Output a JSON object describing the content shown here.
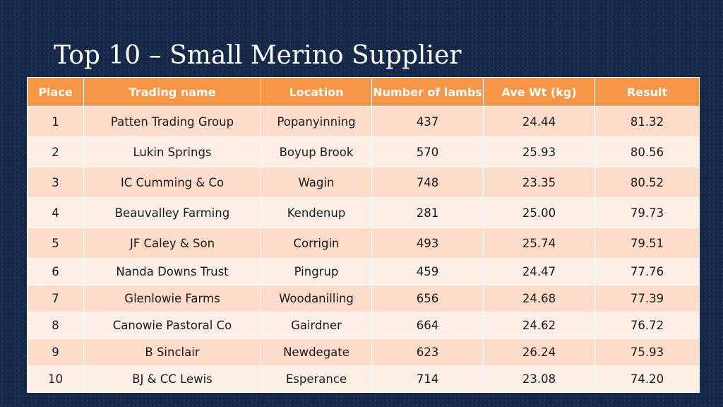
{
  "slide": {
    "title": "Top 10 – Small Merino Supplier"
  },
  "table": {
    "headers": [
      "Place",
      "Trading name",
      "Location",
      "Number of lambs",
      "Ave Wt (kg)",
      "Result"
    ],
    "rows": [
      [
        "1",
        "Patten Trading Group",
        "Popanyinning",
        "437",
        "24.44",
        "81.32"
      ],
      [
        "2",
        "Lukin Springs",
        "Boyup Brook",
        "570",
        "25.93",
        "80.56"
      ],
      [
        "3",
        "IC Cumming & Co",
        "Wagin",
        "748",
        "23.35",
        "80.52"
      ],
      [
        "4",
        "Beauvalley Farming",
        "Kendenup",
        "281",
        "25.00",
        "79.73"
      ],
      [
        "5",
        "JF Caley & Son",
        "Corrigin",
        "493",
        "25.74",
        "79.51"
      ],
      [
        "6",
        "Nanda Downs Trust",
        "Pingrup",
        "459",
        "24.47",
        "77.76"
      ],
      [
        "7",
        "Glenlowie Farms",
        "Woodanilling",
        "656",
        "24.68",
        "77.39"
      ],
      [
        "8",
        "Canowie Pastoral Co",
        "Gairdner",
        "664",
        "24.62",
        "76.72"
      ],
      [
        "9",
        "B Sinclair",
        "Newdegate",
        "623",
        "26.24",
        "75.93"
      ],
      [
        "10",
        "BJ & CC Lewis",
        "Esperance",
        "714",
        "23.08",
        "74.20"
      ]
    ]
  },
  "colors": {
    "background": "#142848",
    "header": "#f79646",
    "row_dark": "#fddcc9",
    "row_light": "#fdeee6"
  }
}
